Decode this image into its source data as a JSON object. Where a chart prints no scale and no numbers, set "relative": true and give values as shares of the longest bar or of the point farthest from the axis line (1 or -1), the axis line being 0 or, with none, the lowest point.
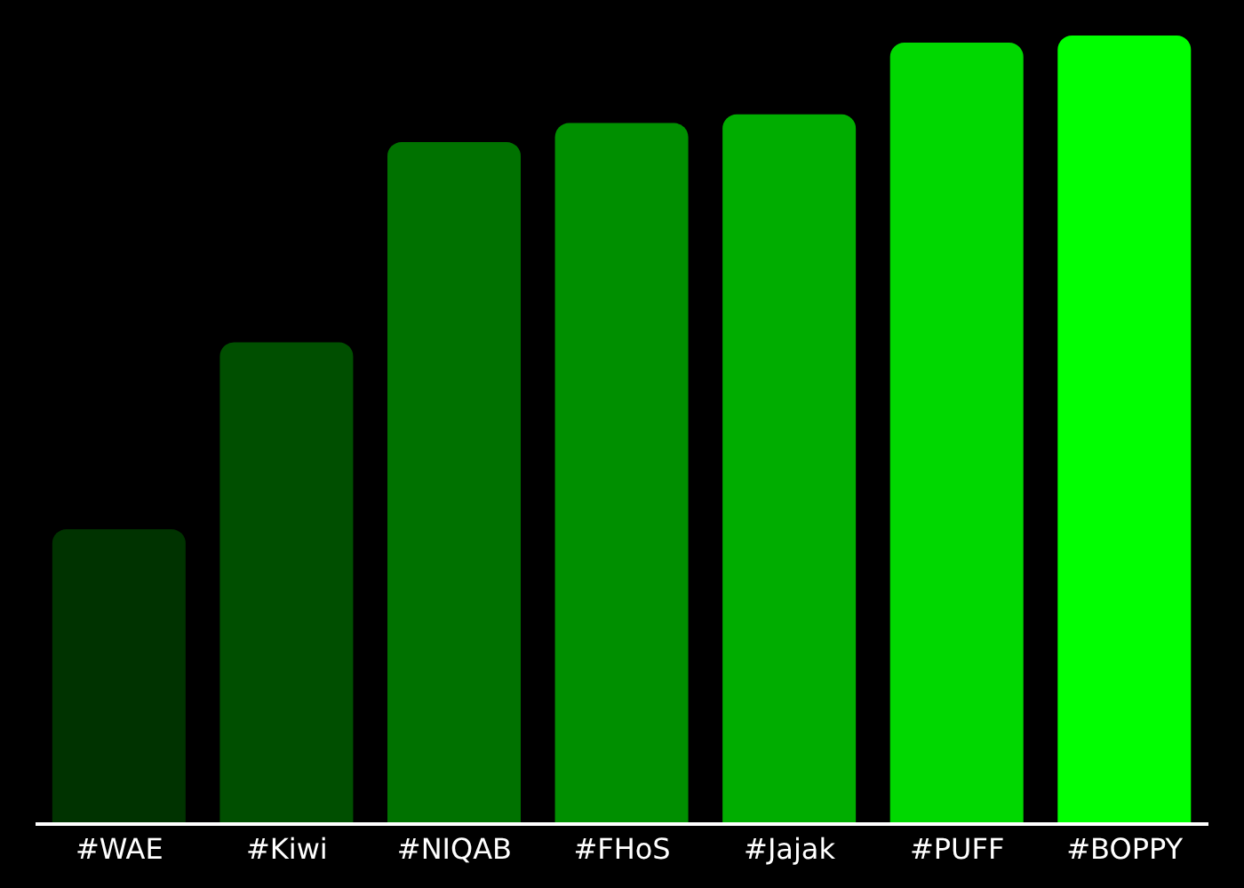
{
  "chart_data": {
    "type": "bar",
    "relative": true,
    "categories": [
      "#WAE",
      "#Kiwi",
      "#NIQAB",
      "#FHoS",
      "#Jajak",
      "#PUFF",
      "#BOPPY"
    ],
    "values": [
      0.374,
      0.611,
      0.865,
      0.889,
      0.9,
      0.991,
      1
    ],
    "colors": [
      "#003300",
      "#004f00",
      "#007200",
      "#008f00",
      "#00ad00",
      "#00d800",
      "#00ff00"
    ]
  }
}
